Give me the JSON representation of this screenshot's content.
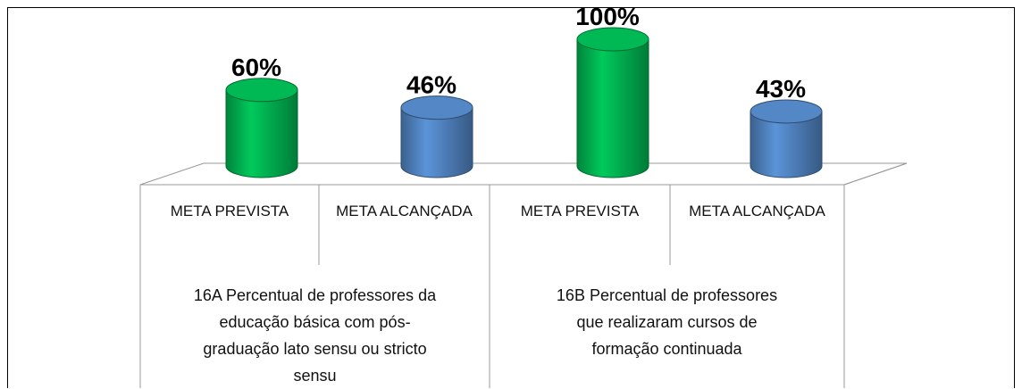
{
  "chart_data": {
    "type": "bar3d",
    "categories": [
      "META PREVISTA",
      "META ALCANÇADA",
      "META PREVISTA",
      "META ALCANÇADA"
    ],
    "category_groups": [
      "16A Percentual de professores da educação básica com pós-graduação lato sensu ou stricto sensu",
      "16B Percentual de professores que realizaram cursos de formação continuada"
    ],
    "values": [
      60,
      46,
      100,
      43
    ],
    "value_labels": [
      "60%",
      "46%",
      "100%",
      "43%"
    ],
    "colors": [
      "#00b050",
      "#4f81bd",
      "#00b050",
      "#4f81bd"
    ]
  }
}
